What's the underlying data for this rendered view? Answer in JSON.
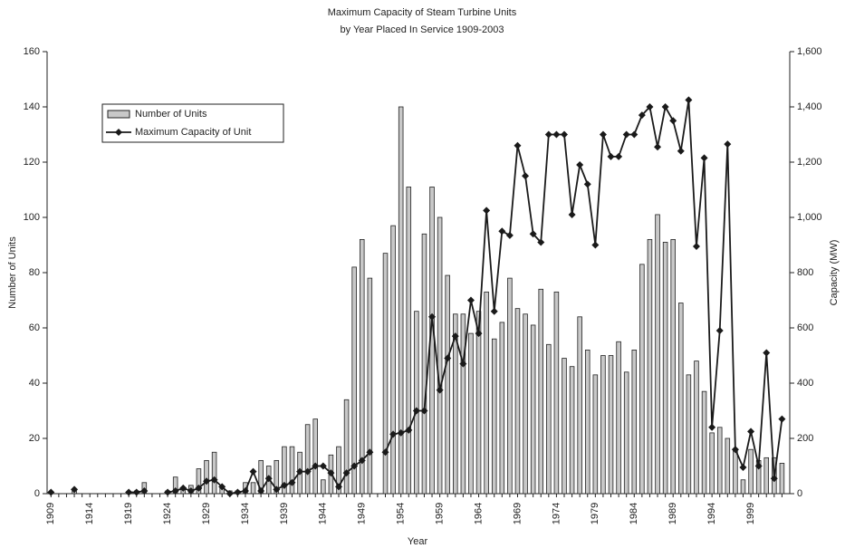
{
  "chart_data": {
    "type": "bar-line",
    "title": "Maximum Capacity of Steam Turbine Units",
    "subtitle": "by Year Placed In Service 1909-2003",
    "x_label": "Year",
    "y_label": "Number of Units",
    "y2_label": "Capacity (MW)",
    "x": [
      1909,
      1910,
      1911,
      1912,
      1913,
      1914,
      1915,
      1916,
      1917,
      1918,
      1919,
      1920,
      1921,
      1922,
      1923,
      1924,
      1925,
      1926,
      1927,
      1928,
      1929,
      1930,
      1931,
      1932,
      1933,
      1934,
      1935,
      1936,
      1937,
      1938,
      1939,
      1940,
      1941,
      1942,
      1943,
      1944,
      1945,
      1946,
      1947,
      1948,
      1949,
      1950,
      1951,
      1952,
      1953,
      1954,
      1955,
      1956,
      1957,
      1958,
      1959,
      1960,
      1961,
      1962,
      1963,
      1964,
      1965,
      1966,
      1967,
      1968,
      1969,
      1970,
      1971,
      1972,
      1973,
      1974,
      1975,
      1976,
      1977,
      1978,
      1979,
      1980,
      1981,
      1982,
      1983,
      1984,
      1985,
      1986,
      1987,
      1988,
      1989,
      1990,
      1991,
      1992,
      1993,
      1994,
      1995,
      1996,
      1997,
      1998,
      1999,
      2000,
      2001,
      2002,
      2003
    ],
    "series": [
      {
        "name": "Number of Units",
        "type": "bar",
        "color": "#c8c8c8",
        "values": [
          0,
          0,
          0,
          1,
          0,
          0,
          0,
          0,
          0,
          0,
          0,
          1,
          4,
          0,
          0,
          1,
          6,
          2,
          3,
          9,
          12,
          15,
          2,
          1,
          1,
          4,
          4,
          12,
          10,
          12,
          17,
          17,
          15,
          25,
          27,
          5,
          14,
          17,
          34,
          82,
          92,
          78,
          0,
          87,
          97,
          140,
          111,
          66,
          94,
          111,
          100,
          79,
          65,
          65,
          58,
          66,
          73,
          56,
          62,
          78,
          67,
          65,
          61,
          74,
          54,
          73,
          49,
          46,
          64,
          52,
          43,
          50,
          50,
          55,
          44,
          52,
          83,
          92,
          101,
          91,
          92,
          69,
          43,
          48,
          37,
          22,
          24,
          20,
          16,
          5,
          16,
          12,
          13,
          13,
          11
        ]
      },
      {
        "name": "Maximum Capacity of Unit",
        "type": "line",
        "axis": "y2",
        "color": "#1a1a1a",
        "values": [
          5,
          null,
          null,
          15,
          null,
          null,
          null,
          null,
          null,
          null,
          5,
          5,
          10,
          null,
          null,
          5,
          10,
          20,
          10,
          20,
          45,
          50,
          25,
          0,
          5,
          10,
          80,
          10,
          55,
          15,
          30,
          40,
          80,
          80,
          100,
          100,
          75,
          25,
          75,
          100,
          120,
          150,
          null,
          150,
          215,
          220,
          230,
          300,
          300,
          640,
          375,
          490,
          570,
          470,
          700,
          580,
          1025,
          660,
          950,
          935,
          1260,
          1150,
          940,
          910,
          1300,
          1300,
          1300,
          1010,
          1190,
          1120,
          900,
          1300,
          1220,
          1220,
          1300,
          1300,
          1370,
          1400,
          1255,
          1400,
          1350,
          1240,
          1425,
          895,
          1215,
          240,
          590,
          1265,
          160,
          95,
          225,
          100,
          510,
          55,
          270
        ]
      }
    ],
    "xlim": [
      1908.5,
      2004
    ],
    "xticks": [
      1909,
      1914,
      1919,
      1924,
      1929,
      1934,
      1939,
      1944,
      1949,
      1954,
      1959,
      1964,
      1969,
      1974,
      1979,
      1984,
      1989,
      1994,
      1999
    ],
    "ylim": [
      0,
      160
    ],
    "yticks": [
      0,
      20,
      40,
      60,
      80,
      100,
      120,
      140,
      160
    ],
    "y2lim": [
      0,
      1600
    ],
    "y2ticks": [
      0,
      200,
      400,
      600,
      800,
      {
        "value": 1000,
        "label": "1,000"
      },
      {
        "value": 1200,
        "label": "1,200"
      },
      {
        "value": 1400,
        "label": "1,400"
      },
      {
        "value": 1600,
        "label": "1,600"
      }
    ],
    "legend": "upper left"
  }
}
